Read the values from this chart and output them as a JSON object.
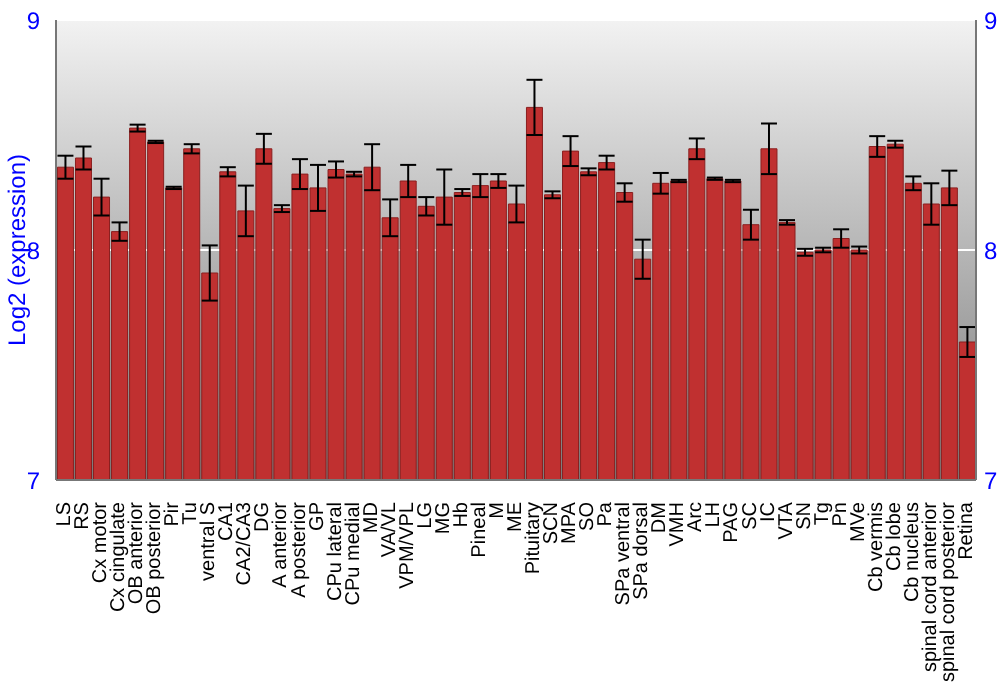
{
  "chart_data": {
    "type": "bar",
    "ylabel": "Log2 (expression)",
    "categories": [
      "LS",
      "RS",
      "Cx motor",
      "Cx cingulate",
      "OB anterior",
      "OB posterior",
      "Pir",
      "Tu",
      "ventral S",
      "CA1",
      "CA2/CA3",
      "DG",
      "A anterior",
      "A posterior",
      "GP",
      "CPu lateral",
      "CPu medial",
      "MD",
      "VA/VL",
      "VPM/VPL",
      "LG",
      "MG",
      "Hb",
      "Pineal",
      "M",
      "ME",
      "Pituitary",
      "SCN",
      "MPA",
      "SO",
      "Pa",
      "SPa ventral",
      "SPa dorsal",
      "DM",
      "VMH",
      "Arc",
      "LH",
      "PAG",
      "SC",
      "IC",
      "VTA",
      "SN",
      "Tg",
      "Pn",
      "MVe",
      "Cb vermis",
      "Cb lobe",
      "Cb nucleus",
      "spinal cord anterior",
      "spinal cord posterior",
      "Retina"
    ],
    "values": [
      8.36,
      8.4,
      8.23,
      8.08,
      8.53,
      8.47,
      8.27,
      8.44,
      7.9,
      8.34,
      8.17,
      8.44,
      8.18,
      8.33,
      8.27,
      8.35,
      8.33,
      8.36,
      8.14,
      8.3,
      8.19,
      8.23,
      8.25,
      8.28,
      8.3,
      8.2,
      8.62,
      8.24,
      8.43,
      8.34,
      8.38,
      8.25,
      7.96,
      8.29,
      8.3,
      8.44,
      8.31,
      8.3,
      8.11,
      8.44,
      8.12,
      7.99,
      8,
      8.05,
      8,
      8.45,
      8.46,
      8.29,
      8.2,
      8.27,
      7.6
    ],
    "errors": [
      0.05,
      0.05,
      0.08,
      0.04,
      0.015,
      0.005,
      0.005,
      0.02,
      0.12,
      0.02,
      0.11,
      0.065,
      0.015,
      0.065,
      0.1,
      0.035,
      0.01,
      0.1,
      0.08,
      0.07,
      0.04,
      0.12,
      0.015,
      0.05,
      0.03,
      0.08,
      0.12,
      0.015,
      0.065,
      0.015,
      0.03,
      0.04,
      0.085,
      0.045,
      0.005,
      0.045,
      0.005,
      0.005,
      0.065,
      0.11,
      0.01,
      0.015,
      0.01,
      0.04,
      0.015,
      0.045,
      0.015,
      0.03,
      0.09,
      0.075,
      0.065
    ],
    "color": "#c03030",
    "ylim": [
      7,
      9
    ],
    "yticks": [
      7,
      8,
      9
    ],
    "y2lim": [
      7,
      9
    ],
    "y2ticks": [
      7,
      8,
      9
    ],
    "grid": "y"
  }
}
